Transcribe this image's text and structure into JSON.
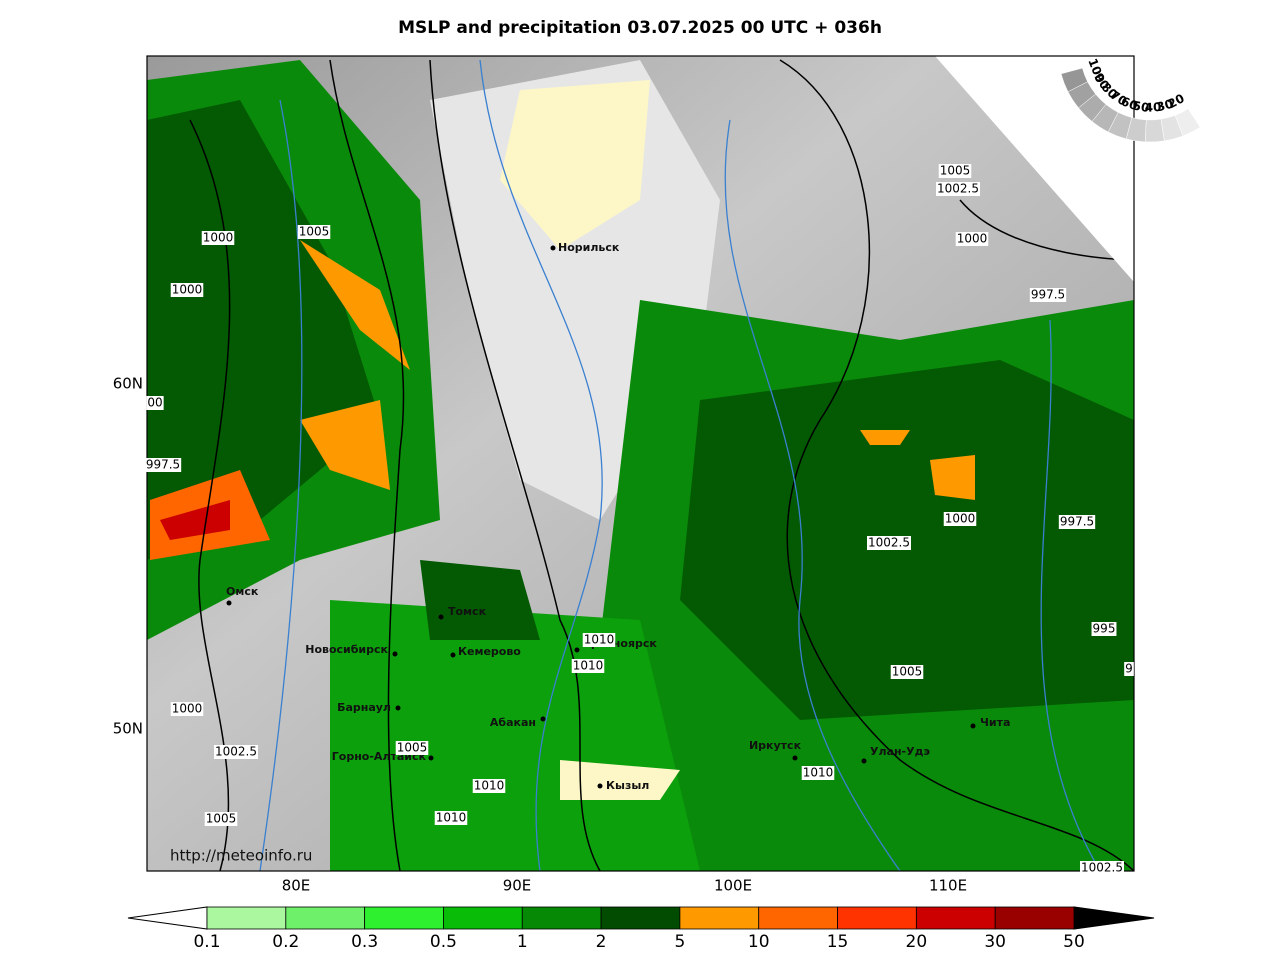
{
  "title": "MSLP and precipitation 03.07.2025 00 UTC + 036h",
  "lon_labels": [
    "80E",
    "90E",
    "100E",
    "110E"
  ],
  "lat_labels": [
    "60N",
    "50N"
  ],
  "cities": [
    "Норильск",
    "Омск",
    "Томск",
    "Новосибирск",
    "Кемерово",
    "Красноярск",
    "Барнаул",
    "Абакан",
    "Горно-Алтайск",
    "Кызыл",
    "Иркутск",
    "Улан-Удэ",
    "Чита"
  ],
  "isobar_labels": [
    "1000",
    "1005",
    "1000",
    "00",
    "997.5",
    "1000",
    "1002.5",
    "1005",
    "1005",
    "1010",
    "1010",
    "1010",
    "1010",
    "1010",
    "1005",
    "1002.5",
    "1000",
    "997.5",
    "995",
    "9",
    "1005",
    "1002.5",
    "1000",
    "997.5",
    "1002.5"
  ],
  "cloud_legend": [
    "100",
    "90",
    "80",
    "70",
    "60",
    "50",
    "40",
    "30",
    "20"
  ],
  "credit": "http://meteoinfo.ru",
  "precip_legend": {
    "labels": [
      "0.1",
      "0.2",
      "0.3",
      "0.5",
      "1",
      "2",
      "5",
      "10",
      "15",
      "20",
      "30",
      "50"
    ],
    "colors": [
      "#aaf7a0",
      "#6ef06a",
      "#2ef02e",
      "#08bc08",
      "#068a06",
      "#024c02",
      "#ff9900",
      "#ff6600",
      "#ff3300",
      "#cc0000",
      "#990000"
    ]
  }
}
